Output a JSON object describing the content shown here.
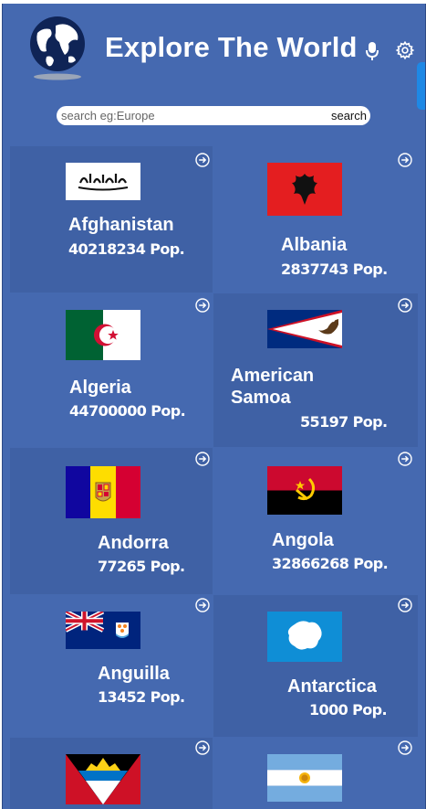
{
  "header": {
    "title": "Explore The World",
    "icons": [
      "globe-logo",
      "microphone-icon",
      "gear-icon"
    ]
  },
  "search": {
    "placeholder": "search eg:Europe",
    "value": "",
    "button_label": "search"
  },
  "countries": [
    {
      "name": "Afghanistan",
      "population": "40218234 Pop."
    },
    {
      "name": "Albania",
      "population": "2837743 Pop."
    },
    {
      "name": "Algeria",
      "population": "44700000 Pop."
    },
    {
      "name": "American Samoa",
      "population": "55197 Pop."
    },
    {
      "name": "Andorra",
      "population": "77265 Pop."
    },
    {
      "name": "Angola",
      "population": "32866268 Pop."
    },
    {
      "name": "Anguilla",
      "population": "13452 Pop."
    },
    {
      "name": "Antarctica",
      "population": "1000 Pop."
    },
    {
      "name": "",
      "population": ""
    },
    {
      "name": "",
      "population": ""
    }
  ],
  "colors": {
    "background": "#4569b0",
    "card_alt": "#3f61a5",
    "accent": "#1e88e5",
    "text": "#ffffff"
  }
}
